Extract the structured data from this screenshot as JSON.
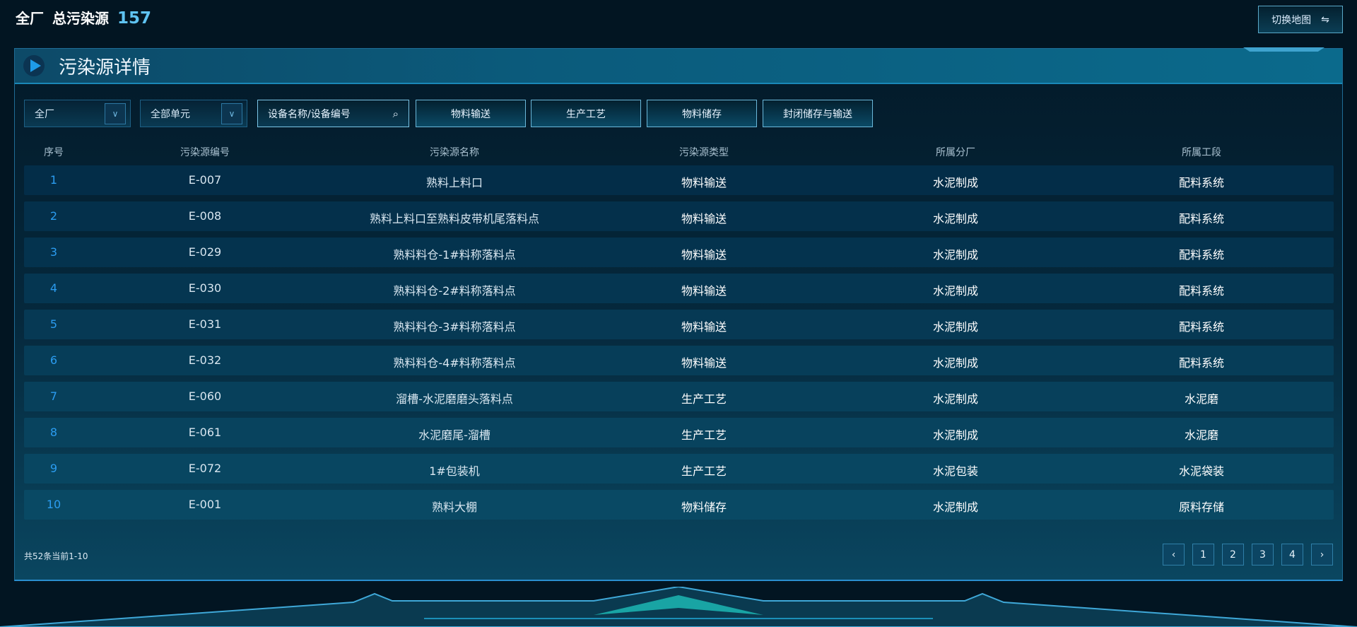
{
  "header": {
    "scope": "全厂",
    "label": "总污染源",
    "count": "157",
    "switch_label": "切换地图",
    "switch_icon": "swap-arrows-icon"
  },
  "panel": {
    "title": "污染源详情"
  },
  "filters": {
    "factory_select": "全厂",
    "unit_select": "全部单元",
    "search_placeholder": "设备名称/设备编号",
    "buttons": [
      "物料输送",
      "生产工艺",
      "物料储存",
      "封闭储存与输送"
    ]
  },
  "table": {
    "headers": [
      "序号",
      "污染源编号",
      "污染源名称",
      "污染源类型",
      "所属分厂",
      "所属工段"
    ],
    "rows": [
      [
        "1",
        "E-007",
        "熟料上料口",
        "物料输送",
        "水泥制成",
        "配料系统"
      ],
      [
        "2",
        "E-008",
        "熟料上料口至熟料皮带机尾落料点",
        "物料输送",
        "水泥制成",
        "配料系统"
      ],
      [
        "3",
        "E-029",
        "熟料料仓-1#料称落料点",
        "物料输送",
        "水泥制成",
        "配料系统"
      ],
      [
        "4",
        "E-030",
        "熟料料仓-2#料称落料点",
        "物料输送",
        "水泥制成",
        "配料系统"
      ],
      [
        "5",
        "E-031",
        "熟料料仓-3#料称落料点",
        "物料输送",
        "水泥制成",
        "配料系统"
      ],
      [
        "6",
        "E-032",
        "熟料料仓-4#料称落料点",
        "物料输送",
        "水泥制成",
        "配料系统"
      ],
      [
        "7",
        "E-060",
        "溜槽-水泥磨磨头落料点",
        "生产工艺",
        "水泥制成",
        "水泥磨"
      ],
      [
        "8",
        "E-061",
        "水泥磨尾-溜槽",
        "生产工艺",
        "水泥制成",
        "水泥磨"
      ],
      [
        "9",
        "E-072",
        "1#包装机",
        "生产工艺",
        "水泥包装",
        "水泥袋装"
      ],
      [
        "10",
        "E-001",
        "熟料大棚",
        "物料储存",
        "水泥制成",
        "原料存储"
      ]
    ]
  },
  "pagination": {
    "info": "共52条当前1-10",
    "prev": "‹",
    "pages": [
      "1",
      "2",
      "3",
      "4"
    ],
    "next": "›"
  }
}
